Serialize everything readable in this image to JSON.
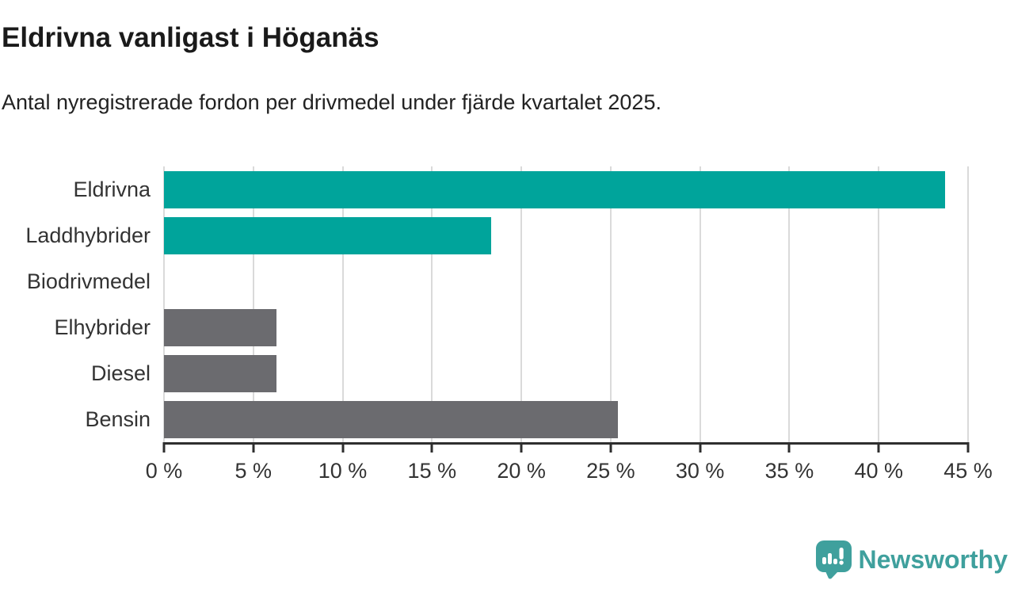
{
  "header": {
    "title": "Eldrivna vanligast i Höganäs",
    "subtitle": "Antal nyregistrerade fordon per drivmedel under fjärde kvartalet 2025."
  },
  "chart_data": {
    "type": "bar",
    "orientation": "horizontal",
    "title": "Eldrivna vanligast i Höganäs",
    "subtitle": "Antal nyregistrerade fordon per drivmedel under fjärde kvartalet 2025.",
    "xlabel": "",
    "ylabel": "",
    "unit": "%",
    "categories": [
      "Eldrivna",
      "Laddhybrider",
      "Biodrivmedel",
      "Elhybrider",
      "Diesel",
      "Bensin"
    ],
    "values": [
      43.7,
      18.3,
      0,
      6.3,
      6.3,
      25.4
    ],
    "bar_colors": [
      "#00a49b",
      "#00a49b",
      "#00a49b",
      "#6b6b6f",
      "#6b6b6f",
      "#6b6b6f"
    ],
    "xlim": [
      0,
      45
    ],
    "x_tick_values": [
      0,
      5,
      10,
      15,
      20,
      25,
      30,
      35,
      40,
      45
    ],
    "x_tick_labels": [
      "0 %",
      "5 %",
      "10 %",
      "15 %",
      "20 %",
      "25 %",
      "30 %",
      "35 %",
      "40 %",
      "45 %"
    ],
    "grid": "vertical",
    "legend": "none"
  },
  "colors": {
    "teal_bar": "#00a49b",
    "gray_bar": "#6b6b6f",
    "gridline": "#dadada",
    "axis": "#2e2e2e",
    "logo_teal": "#3fa09d"
  },
  "footer": {
    "brand": "Newsworthy"
  }
}
